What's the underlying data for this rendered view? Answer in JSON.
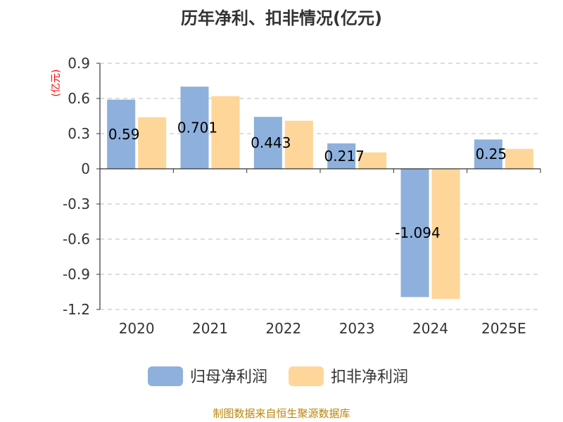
{
  "chart_data": {
    "type": "bar",
    "title": "历年净利、扣非情况(亿元)",
    "ylabel": "(亿元)",
    "xlabel": "",
    "categories": [
      "2020",
      "2021",
      "2022",
      "2023",
      "2024",
      "2025E"
    ],
    "series": [
      {
        "name": "归母净利润",
        "values": [
          0.59,
          0.701,
          0.443,
          0.217,
          -1.094,
          0.25
        ],
        "color": "#8eb0dc"
      },
      {
        "name": "扣非净利润",
        "values": [
          0.44,
          0.62,
          0.41,
          0.14,
          -1.11,
          0.17
        ],
        "color": "#ffd699"
      }
    ],
    "data_labels": [
      "0.59",
      "0.701",
      "0.443",
      "0.217",
      "-1.094",
      "0.25"
    ],
    "yticks": [
      "0.9",
      "0.6",
      "0.3",
      "0",
      "-0.3",
      "-0.6",
      "-0.9",
      "-1.2"
    ],
    "ylim": [
      -1.2,
      0.9
    ],
    "grid": true,
    "legend_position": "bottom"
  },
  "source": "制图数据来自恒生聚源数据库",
  "colors": {
    "axis": "#333333",
    "grid": "#bbbbbb",
    "unit": "#ff0000",
    "source": "#b8860b"
  }
}
